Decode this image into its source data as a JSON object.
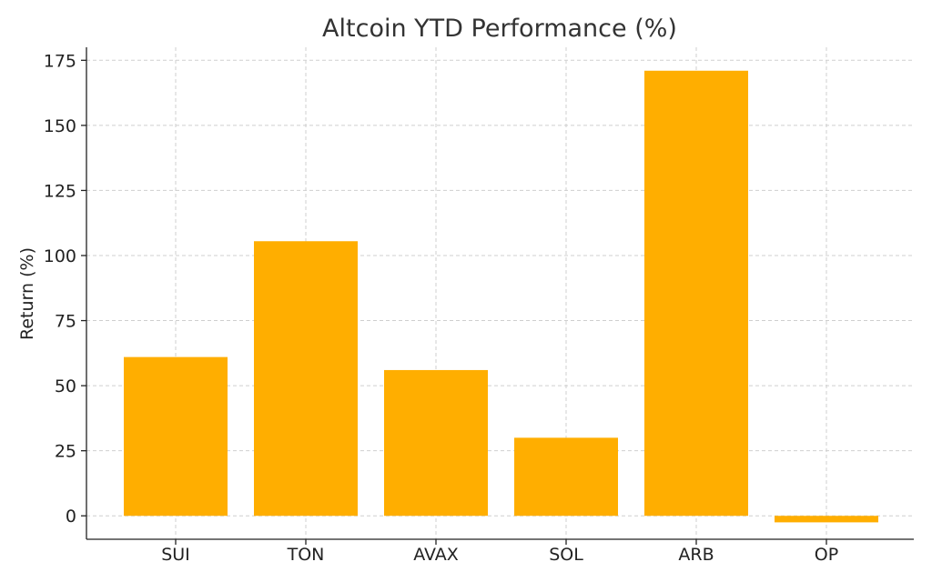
{
  "chart_data": {
    "type": "bar",
    "title": "Altcoin YTD Performance (%)",
    "xlabel": "",
    "ylabel": "Return (%)",
    "categories": [
      "SUI",
      "TON",
      "AVAX",
      "SOL",
      "ARB",
      "OP"
    ],
    "values": [
      61,
      105.5,
      56,
      30,
      171,
      -2.5
    ],
    "ylim": [
      -9,
      180
    ],
    "yticks": [
      0,
      25,
      50,
      75,
      100,
      125,
      150,
      175
    ],
    "grid": true,
    "bar_color": "#FFAE00"
  }
}
